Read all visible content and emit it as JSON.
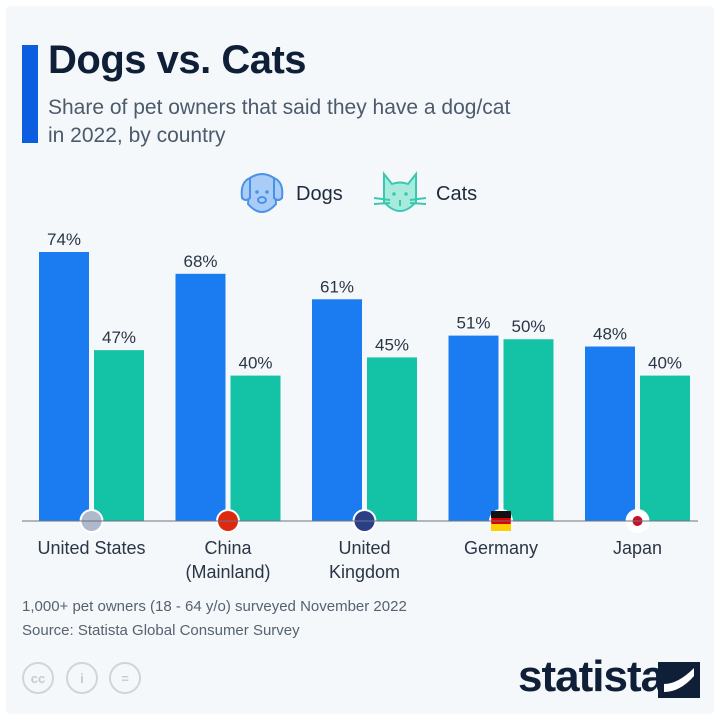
{
  "title": "Dogs vs. Cats",
  "subtitle": "Share of pet owners that said they have a dog/cat in 2022, by country",
  "legend": {
    "dogs": "Dogs",
    "cats": "Cats"
  },
  "footnote": "1,000+ pet owners (18 - 64 y/o) surveyed November 2022",
  "source": "Source: Statista Global Consumer Survey",
  "license_icons": [
    "cc-icon",
    "attribution-icon",
    "no-derivatives-icon"
  ],
  "logo": "statista",
  "colors": {
    "dogs": "#1b7cf2",
    "cats": "#14c3a6",
    "background": "#f5f8fb",
    "accent": "#0b5ee0"
  },
  "chart_data": {
    "type": "bar",
    "categories": [
      "United States",
      "China (Mainland)",
      "United Kingdom",
      "Germany",
      "Japan"
    ],
    "category_lines": [
      [
        "United States"
      ],
      [
        "China",
        "(Mainland)"
      ],
      [
        "United",
        "Kingdom"
      ],
      [
        "Germany"
      ],
      [
        "Japan"
      ]
    ],
    "series": [
      {
        "name": "Dogs",
        "values": [
          74,
          68,
          61,
          51,
          48
        ],
        "labels": [
          "74%",
          "68%",
          "61%",
          "51%",
          "48%"
        ]
      },
      {
        "name": "Cats",
        "values": [
          47,
          40,
          45,
          50,
          40
        ],
        "labels": [
          "47%",
          "40%",
          "45%",
          "50%",
          "40%"
        ]
      }
    ],
    "unit": "%",
    "ylim": [
      0,
      100
    ],
    "grid": false,
    "legend": "top-center"
  }
}
